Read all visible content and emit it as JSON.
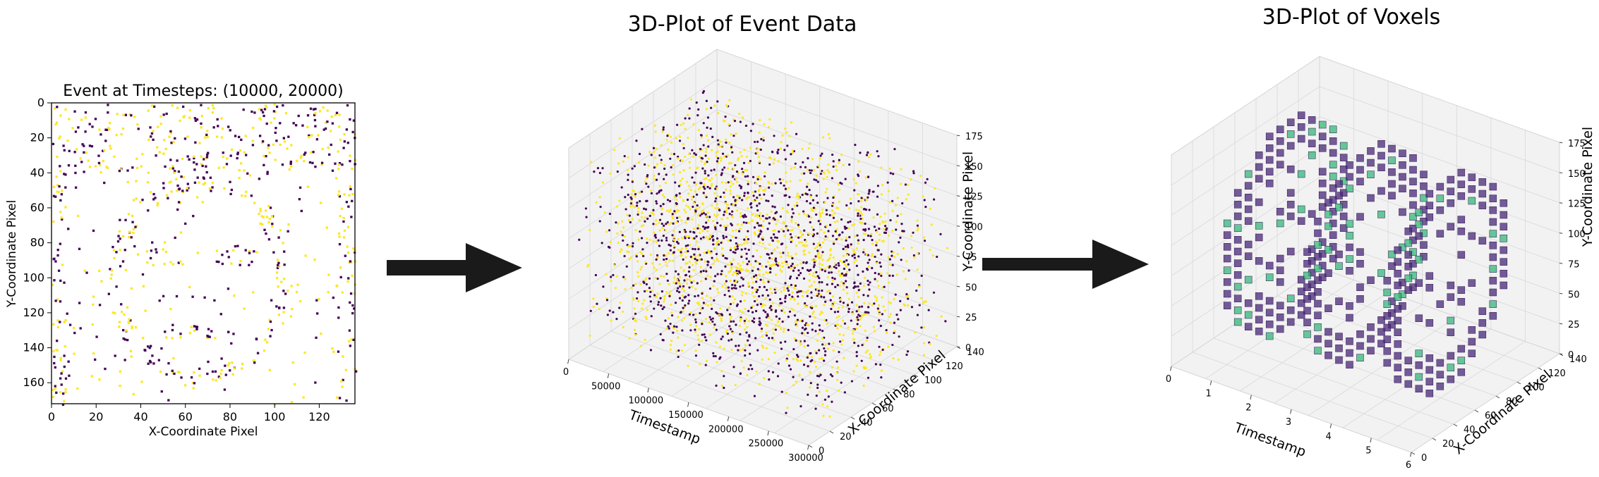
{
  "colors": {
    "background": "#ffffff",
    "event_polarity_on": "#fde725",
    "event_polarity_off": "#440154",
    "voxel_low": "#482878",
    "voxel_high": "#35b779",
    "arrow": "#1a1a1a",
    "pane": "#f2f2f2",
    "grid": "#d8d8d8"
  },
  "chart_data": [
    {
      "type": "heatmap",
      "title": "Event at Timesteps: (10000, 20000)",
      "xlabel": "X-Coordinate Pixel",
      "ylabel": "Y-Coordinate Pixel",
      "xlim": [
        0,
        136
      ],
      "ylim": [
        172,
        0
      ],
      "xticks": [
        "0",
        "20",
        "40",
        "60",
        "80",
        "100",
        "120"
      ],
      "yticks": [
        "0",
        "20",
        "40",
        "60",
        "80",
        "100",
        "120",
        "140",
        "160"
      ],
      "colors": [
        "#fde725",
        "#440154"
      ],
      "grid": false
    },
    {
      "type": "scatter",
      "title": "3D-Plot of Event Data",
      "xlabel": "Timestamp",
      "ylabel": "X-Coordinate Pixel",
      "zlabel": "Y-Coordinate Pixel",
      "xlim": [
        0,
        300000
      ],
      "ylim": [
        0,
        140
      ],
      "zlim": [
        0,
        180
      ],
      "xticks": [
        "0",
        "50000",
        "100000",
        "150000",
        "200000",
        "250000",
        "300000"
      ],
      "yticks": [
        "0",
        "20",
        "40",
        "60",
        "80",
        "100",
        "120",
        "140"
      ],
      "zticks": [
        "0",
        "25",
        "50",
        "75",
        "100",
        "125",
        "150",
        "175"
      ],
      "colors": [
        "#fde725",
        "#440154"
      ],
      "grid": true
    },
    {
      "type": "scatter",
      "title": "3D-Plot of Voxels",
      "xlabel": "Timestamp",
      "ylabel": "X-Coordinate Pixel",
      "zlabel": "Y-Coordinate Pixel",
      "xlim": [
        0,
        6
      ],
      "ylim": [
        0,
        140
      ],
      "zlim": [
        0,
        180
      ],
      "xticks": [
        "0",
        "1",
        "2",
        "3",
        "4",
        "5",
        "6"
      ],
      "yticks": [
        "0",
        "20",
        "40",
        "60",
        "80",
        "100",
        "120",
        "140"
      ],
      "zticks": [
        "0",
        "25",
        "50",
        "75",
        "100",
        "125",
        "150",
        "175"
      ],
      "voxel_slices_at_timestamp": [
        1,
        3,
        5
      ],
      "grid": true
    }
  ]
}
